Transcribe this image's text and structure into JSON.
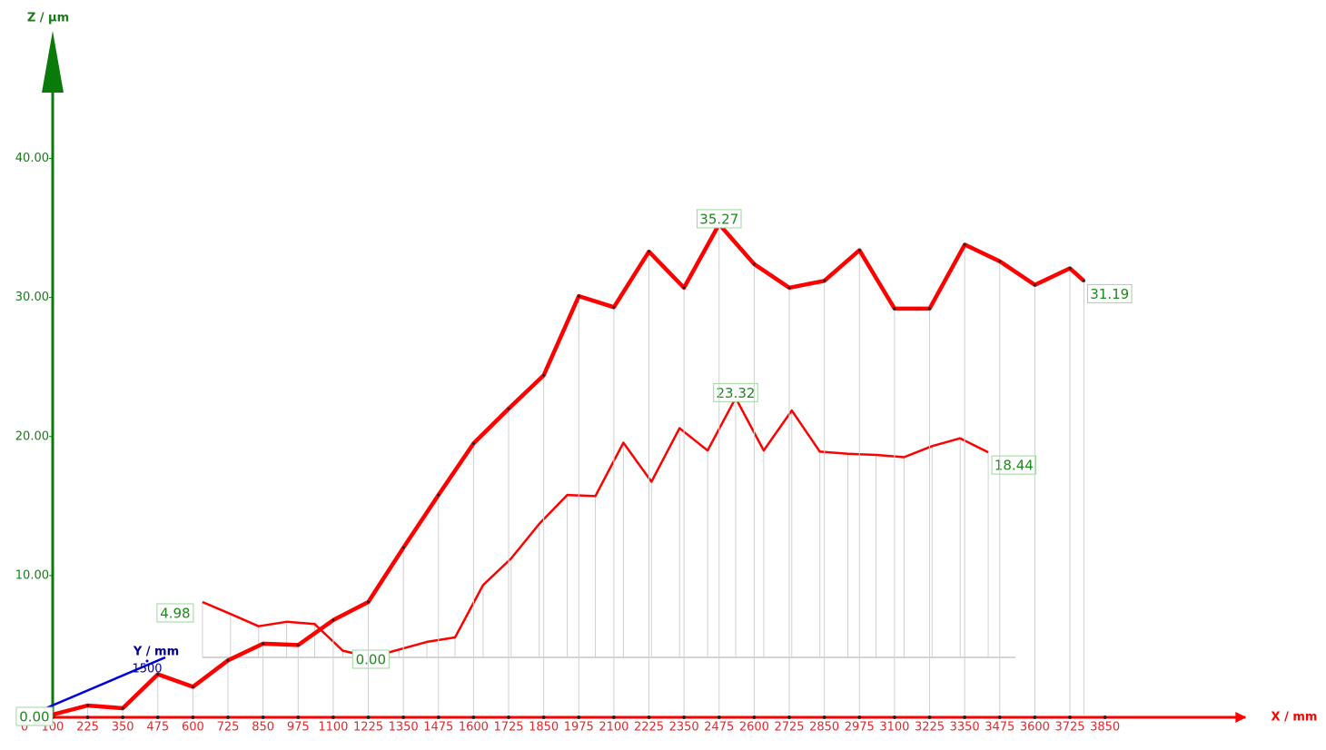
{
  "chart_data": {
    "type": "line",
    "x_label": "X / mm",
    "y_label": "Z / µm",
    "depth_label": "Y / mm",
    "xlim": [
      0,
      4350
    ],
    "xticks": [
      0,
      100,
      225,
      350,
      475,
      600,
      725,
      850,
      975,
      1100,
      1225,
      1350,
      1475,
      1600,
      1725,
      1850,
      1975,
      2100,
      2225,
      2350,
      2475,
      2600,
      2725,
      2850,
      2975,
      3100,
      3225,
      3350,
      3475,
      3600,
      3725,
      3850
    ],
    "ylim": [
      0,
      48
    ],
    "yticks": [
      {
        "value": 10,
        "label": "10.00"
      },
      {
        "value": 20,
        "label": "20.00"
      },
      {
        "value": 30,
        "label": "30.00"
      },
      {
        "value": 40,
        "label": "40.00"
      }
    ],
    "depth_ticks": [
      1500
    ],
    "series": [
      {
        "color": "#ff0000",
        "x": [
          100,
          225,
          350,
          475,
          600,
          725,
          850,
          975,
          1100,
          1225,
          1350,
          1475,
          1600,
          1725,
          1850,
          1975,
          2100,
          2225,
          2350,
          2475,
          2600,
          2725,
          2850,
          2975,
          3100,
          3225,
          3350,
          3475,
          3600,
          3725,
          3775
        ],
        "values": [
          0.0,
          0.65,
          0.46,
          2.9,
          2.0,
          3.9,
          5.1,
          5.0,
          6.8,
          8.1,
          12.0,
          15.8,
          19.5,
          22.0,
          24.4,
          30.1,
          29.3,
          33.3,
          30.7,
          35.27,
          32.4,
          30.7,
          31.2,
          33.4,
          29.2,
          29.2,
          33.8,
          32.6,
          30.9,
          32.1,
          31.19
        ],
        "value_labels": [
          "0.00",
          null,
          null,
          null,
          null,
          null,
          null,
          null,
          null,
          null,
          null,
          null,
          null,
          null,
          null,
          null,
          null,
          null,
          null,
          "35.27",
          null,
          null,
          null,
          null,
          null,
          null,
          null,
          null,
          null,
          null,
          "31.19"
        ]
      },
      {
        "color": "#ff0000",
        "depth": 1500,
        "x": [
          100,
          200,
          300,
          400,
          500,
          600,
          700,
          800,
          900,
          1000,
          1100,
          1200,
          1300,
          1400,
          1500,
          1600,
          1700,
          1800,
          1900,
          2000,
          2100,
          2200,
          2300,
          2400,
          2500,
          2600,
          2700,
          2800,
          2900
        ],
        "values": [
          4.98,
          3.9,
          2.8,
          3.2,
          3.0,
          0.6,
          0.0,
          0.7,
          1.4,
          1.8,
          6.5,
          8.9,
          12.0,
          14.6,
          14.5,
          19.3,
          15.8,
          20.6,
          18.6,
          23.32,
          18.6,
          22.2,
          18.5,
          18.3,
          18.2,
          18.0,
          19.0,
          19.7,
          18.44
        ],
        "value_labels": [
          "4.98",
          null,
          null,
          null,
          null,
          null,
          "0.00",
          null,
          null,
          null,
          null,
          null,
          null,
          null,
          null,
          null,
          null,
          null,
          null,
          "23.32",
          null,
          null,
          null,
          null,
          null,
          null,
          null,
          null,
          "18.44"
        ]
      }
    ]
  }
}
